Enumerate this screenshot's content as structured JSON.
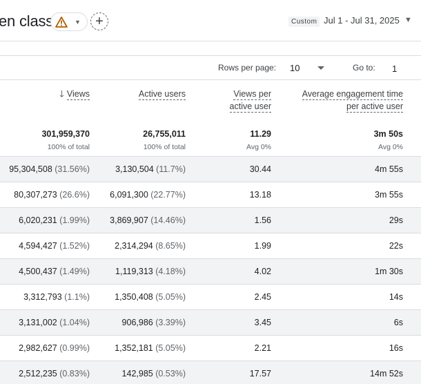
{
  "header": {
    "title": "en class",
    "custom_tag": "Custom",
    "date_range": "Jul 1 - Jul 31, 2025",
    "warning_color": "#b06000"
  },
  "pager": {
    "rows_label": "Rows per page:",
    "rows_value": "10",
    "goto_label": "Go to:",
    "goto_value": "1"
  },
  "columns": {
    "views": "Views",
    "active_users": "Active users",
    "views_per_user_l1": "Views per",
    "views_per_user_l2": "active user",
    "avg_engagement_l1": "Average engagement time",
    "avg_engagement_l2": "per active user"
  },
  "totals": {
    "views": "301,959,370",
    "views_sub": "100% of total",
    "active_users": "26,755,011",
    "active_users_sub": "100% of total",
    "views_per_user": "11.29",
    "views_per_user_sub": "Avg 0%",
    "avg_engagement": "3m 50s",
    "avg_engagement_sub": "Avg 0%"
  },
  "rows": [
    {
      "views": "95,304,508",
      "views_pct": "(31.56%)",
      "users": "3,130,504",
      "users_pct": "(11.7%)",
      "vpu": "30.44",
      "eng": "4m 55s"
    },
    {
      "views": "80,307,273",
      "views_pct": "(26.6%)",
      "users": "6,091,300",
      "users_pct": "(22.77%)",
      "vpu": "13.18",
      "eng": "3m 55s"
    },
    {
      "views": "6,020,231",
      "views_pct": "(1.99%)",
      "users": "3,869,907",
      "users_pct": "(14.46%)",
      "vpu": "1.56",
      "eng": "29s"
    },
    {
      "views": "4,594,427",
      "views_pct": "(1.52%)",
      "users": "2,314,294",
      "users_pct": "(8.65%)",
      "vpu": "1.99",
      "eng": "22s"
    },
    {
      "views": "4,500,437",
      "views_pct": "(1.49%)",
      "users": "1,119,313",
      "users_pct": "(4.18%)",
      "vpu": "4.02",
      "eng": "1m 30s"
    },
    {
      "views": "3,312,793",
      "views_pct": "(1.1%)",
      "users": "1,350,408",
      "users_pct": "(5.05%)",
      "vpu": "2.45",
      "eng": "14s"
    },
    {
      "views": "3,131,002",
      "views_pct": "(1.04%)",
      "users": "906,986",
      "users_pct": "(3.39%)",
      "vpu": "3.45",
      "eng": "6s"
    },
    {
      "views": "2,982,627",
      "views_pct": "(0.99%)",
      "users": "1,352,181",
      "users_pct": "(5.05%)",
      "vpu": "2.21",
      "eng": "16s"
    },
    {
      "views": "2,512,235",
      "views_pct": "(0.83%)",
      "users": "142,985",
      "users_pct": "(0.53%)",
      "vpu": "17.57",
      "eng": "14m 52s"
    }
  ]
}
